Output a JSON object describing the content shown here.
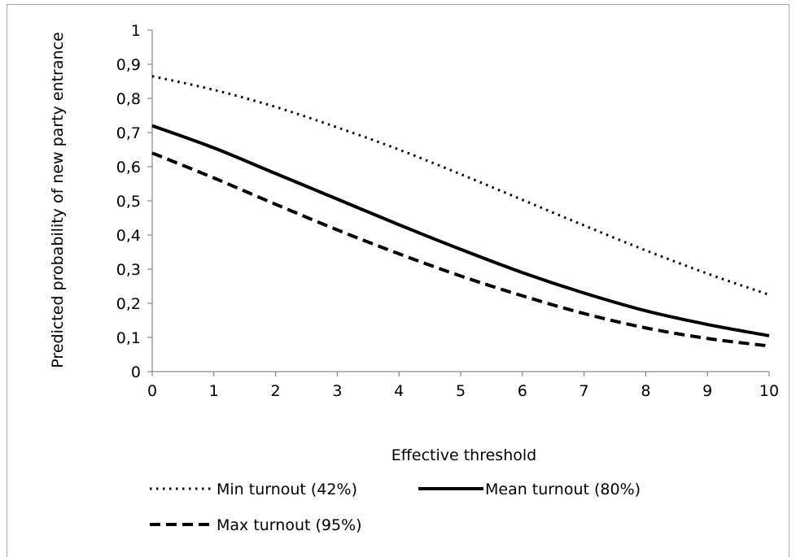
{
  "chart_data": {
    "type": "line",
    "title": "",
    "xlabel": "Effective threshold",
    "ylabel": "Predicted probability of new party entrance",
    "xlim": [
      0,
      10
    ],
    "ylim": [
      0,
      1
    ],
    "x_ticks": [
      "0",
      "1",
      "2",
      "3",
      "4",
      "5",
      "6",
      "7",
      "8",
      "9",
      "10"
    ],
    "y_ticks": [
      "0",
      "0,1",
      "0,2",
      "0,3",
      "0,4",
      "0,5",
      "0,6",
      "0,7",
      "0,8",
      "0,9",
      "1"
    ],
    "grid": false,
    "legend_position": "bottom",
    "x": [
      0,
      1,
      2,
      3,
      4,
      5,
      6,
      7,
      8,
      9,
      10
    ],
    "series": [
      {
        "name": "Min turnout (42%)",
        "style": "dotted",
        "color": "#000000",
        "values": [
          0.865,
          0.825,
          0.775,
          0.715,
          0.65,
          0.578,
          0.503,
          0.428,
          0.355,
          0.287,
          0.225
        ]
      },
      {
        "name": "Mean turnout (80%)",
        "style": "solid",
        "color": "#000000",
        "values": [
          0.72,
          0.655,
          0.58,
          0.505,
          0.43,
          0.358,
          0.29,
          0.23,
          0.178,
          0.138,
          0.105
        ]
      },
      {
        "name": "Max turnout (95%)",
        "style": "dashed",
        "color": "#000000",
        "values": [
          0.64,
          0.567,
          0.49,
          0.415,
          0.345,
          0.28,
          0.222,
          0.17,
          0.128,
          0.097,
          0.075
        ]
      }
    ]
  }
}
